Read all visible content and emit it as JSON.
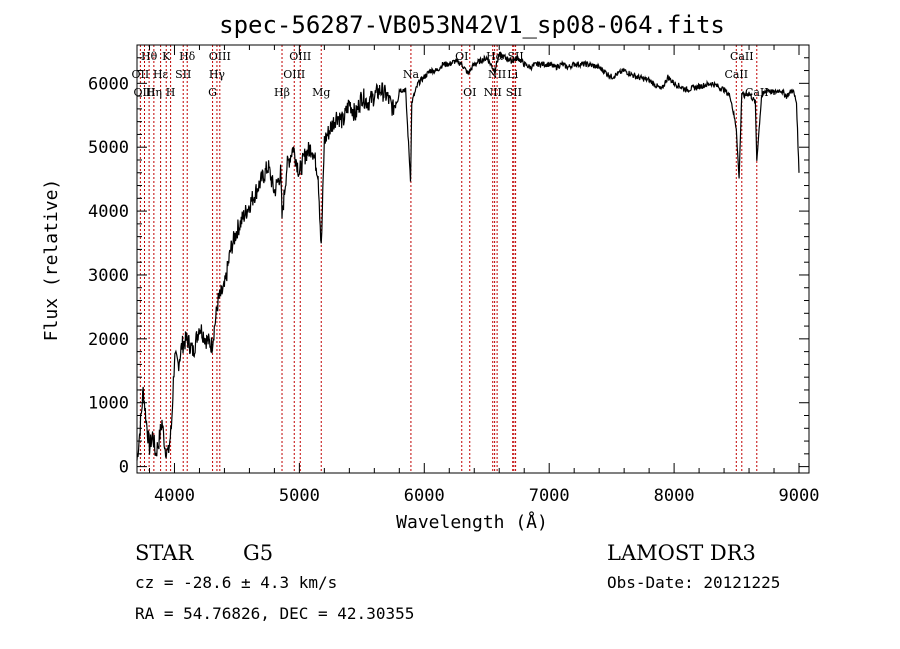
{
  "chart_data": {
    "type": "line",
    "title": "spec-56287-VB053N42V1_sp08-064.fits",
    "xlabel": "Wavelength (Å)",
    "ylabel": "Flux (relative)",
    "xlim": [
      3700,
      9080
    ],
    "ylim": [
      -100,
      6600
    ],
    "xticks": [
      4000,
      5000,
      6000,
      7000,
      8000,
      9000
    ],
    "xtick_labels": [
      "4000",
      "5000",
      "6000",
      "7000",
      "8000",
      "9000"
    ],
    "yticks": [
      0,
      1000,
      2000,
      3000,
      4000,
      5000,
      6000
    ],
    "ytick_labels": [
      "0",
      "1000",
      "2000",
      "3000",
      "4000",
      "5000",
      "6000"
    ],
    "series": [
      {
        "name": "flux",
        "x": [
          3700,
          3725,
          3750,
          3775,
          3800,
          3825,
          3850,
          3875,
          3900,
          3925,
          3950,
          3975,
          4000,
          4030,
          4060,
          4100,
          4150,
          4200,
          4250,
          4300,
          4350,
          4400,
          4450,
          4500,
          4550,
          4600,
          4650,
          4700,
          4750,
          4800,
          4850,
          4861,
          4900,
          4950,
          5000,
          5050,
          5100,
          5150,
          5175,
          5200,
          5250,
          5300,
          5350,
          5400,
          5450,
          5500,
          5550,
          5600,
          5650,
          5700,
          5750,
          5800,
          5850,
          5890,
          5900,
          5950,
          6000,
          6050,
          6100,
          6150,
          6200,
          6250,
          6300,
          6350,
          6400,
          6450,
          6500,
          6563,
          6600,
          6650,
          6700,
          6750,
          6800,
          6850,
          6900,
          6950,
          7000,
          7050,
          7100,
          7150,
          7200,
          7300,
          7400,
          7500,
          7600,
          7700,
          7800,
          7900,
          7950,
          8000,
          8100,
          8200,
          8300,
          8400,
          8450,
          8498,
          8520,
          8542,
          8560,
          8600,
          8650,
          8662,
          8700,
          8750,
          8800,
          8850,
          8900,
          8950,
          8980,
          9000
        ],
        "y": [
          100,
          600,
          1200,
          700,
          300,
          500,
          200,
          400,
          700,
          300,
          200,
          600,
          1700,
          1600,
          1900,
          2000,
          1800,
          2200,
          2000,
          1900,
          2600,
          2800,
          3400,
          3700,
          3900,
          4100,
          4300,
          4500,
          4700,
          4300,
          4600,
          3900,
          4700,
          5000,
          4600,
          4900,
          5000,
          4600,
          3400,
          5100,
          5300,
          5500,
          5400,
          5700,
          5500,
          5800,
          5700,
          5800,
          5900,
          5800,
          5600,
          5900,
          5900,
          4500,
          5700,
          6000,
          6100,
          6200,
          6200,
          6300,
          6300,
          6350,
          6300,
          6150,
          6300,
          6350,
          6400,
          6200,
          6450,
          6400,
          6350,
          6400,
          6300,
          6250,
          6300,
          6300,
          6300,
          6250,
          6300,
          6250,
          6300,
          6300,
          6250,
          6100,
          6200,
          6100,
          6050,
          5900,
          6100,
          6000,
          5900,
          5950,
          6000,
          5900,
          5800,
          5300,
          4500,
          5850,
          5800,
          5850,
          5700,
          4800,
          5800,
          5900,
          5850,
          5900,
          5800,
          5900,
          5700,
          4600
        ]
      }
    ],
    "spectral_lines": [
      {
        "label": "Hθ",
        "x": 3797,
        "row": 0
      },
      {
        "label": "OII",
        "x": 3727,
        "row": 1
      },
      {
        "label": "OIII",
        "x": 3760,
        "row": 2
      },
      {
        "label": "Hη",
        "x": 3835,
        "row": 2
      },
      {
        "label": "Hε",
        "x": 3889,
        "row": 1
      },
      {
        "label": "K",
        "x": 3934,
        "row": 0
      },
      {
        "label": "H",
        "x": 3969,
        "row": 2
      },
      {
        "label": "SII",
        "x": 4070,
        "row": 1
      },
      {
        "label": "Hδ",
        "x": 4102,
        "row": 0
      },
      {
        "label": "G",
        "x": 4305,
        "row": 2
      },
      {
        "label": "Hγ",
        "x": 4340,
        "row": 1
      },
      {
        "label": "OIII",
        "x": 4363,
        "row": 0
      },
      {
        "label": "Hβ",
        "x": 4861,
        "row": 2
      },
      {
        "label": "OIII",
        "x": 4959,
        "row": 1
      },
      {
        "label": "OIII",
        "x": 5007,
        "row": 0
      },
      {
        "label": "Mg",
        "x": 5175,
        "row": 2
      },
      {
        "label": "Na",
        "x": 5893,
        "row": 1
      },
      {
        "label": "OI",
        "x": 6300,
        "row": 0
      },
      {
        "label": "OI",
        "x": 6364,
        "row": 2
      },
      {
        "label": "NII",
        "x": 6548,
        "row": 2
      },
      {
        "label": "Hα",
        "x": 6563,
        "row": 0
      },
      {
        "label": "NII",
        "x": 6583,
        "row": 1
      },
      {
        "label": "Li",
        "x": 6708,
        "row": 1
      },
      {
        "label": "SII",
        "x": 6717,
        "row": 2
      },
      {
        "label": "SII",
        "x": 6731,
        "row": 0
      },
      {
        "label": "CaII",
        "x": 8498,
        "row": 1
      },
      {
        "label": "CaII",
        "x": 8542,
        "row": 0
      },
      {
        "label": "CaII",
        "x": 8662,
        "row": 2
      }
    ],
    "colors": {
      "spectrum": "#000000",
      "lines": "#c00000",
      "axes": "#000000"
    }
  },
  "info": {
    "object_class": "STAR",
    "subclass": "G5",
    "survey": "LAMOST DR3",
    "cz": "cz = -28.6 ± 4.3 km/s",
    "obs_date": "Obs-Date: 20121225",
    "coords": "RA =  54.76826, DEC =  42.30355"
  }
}
